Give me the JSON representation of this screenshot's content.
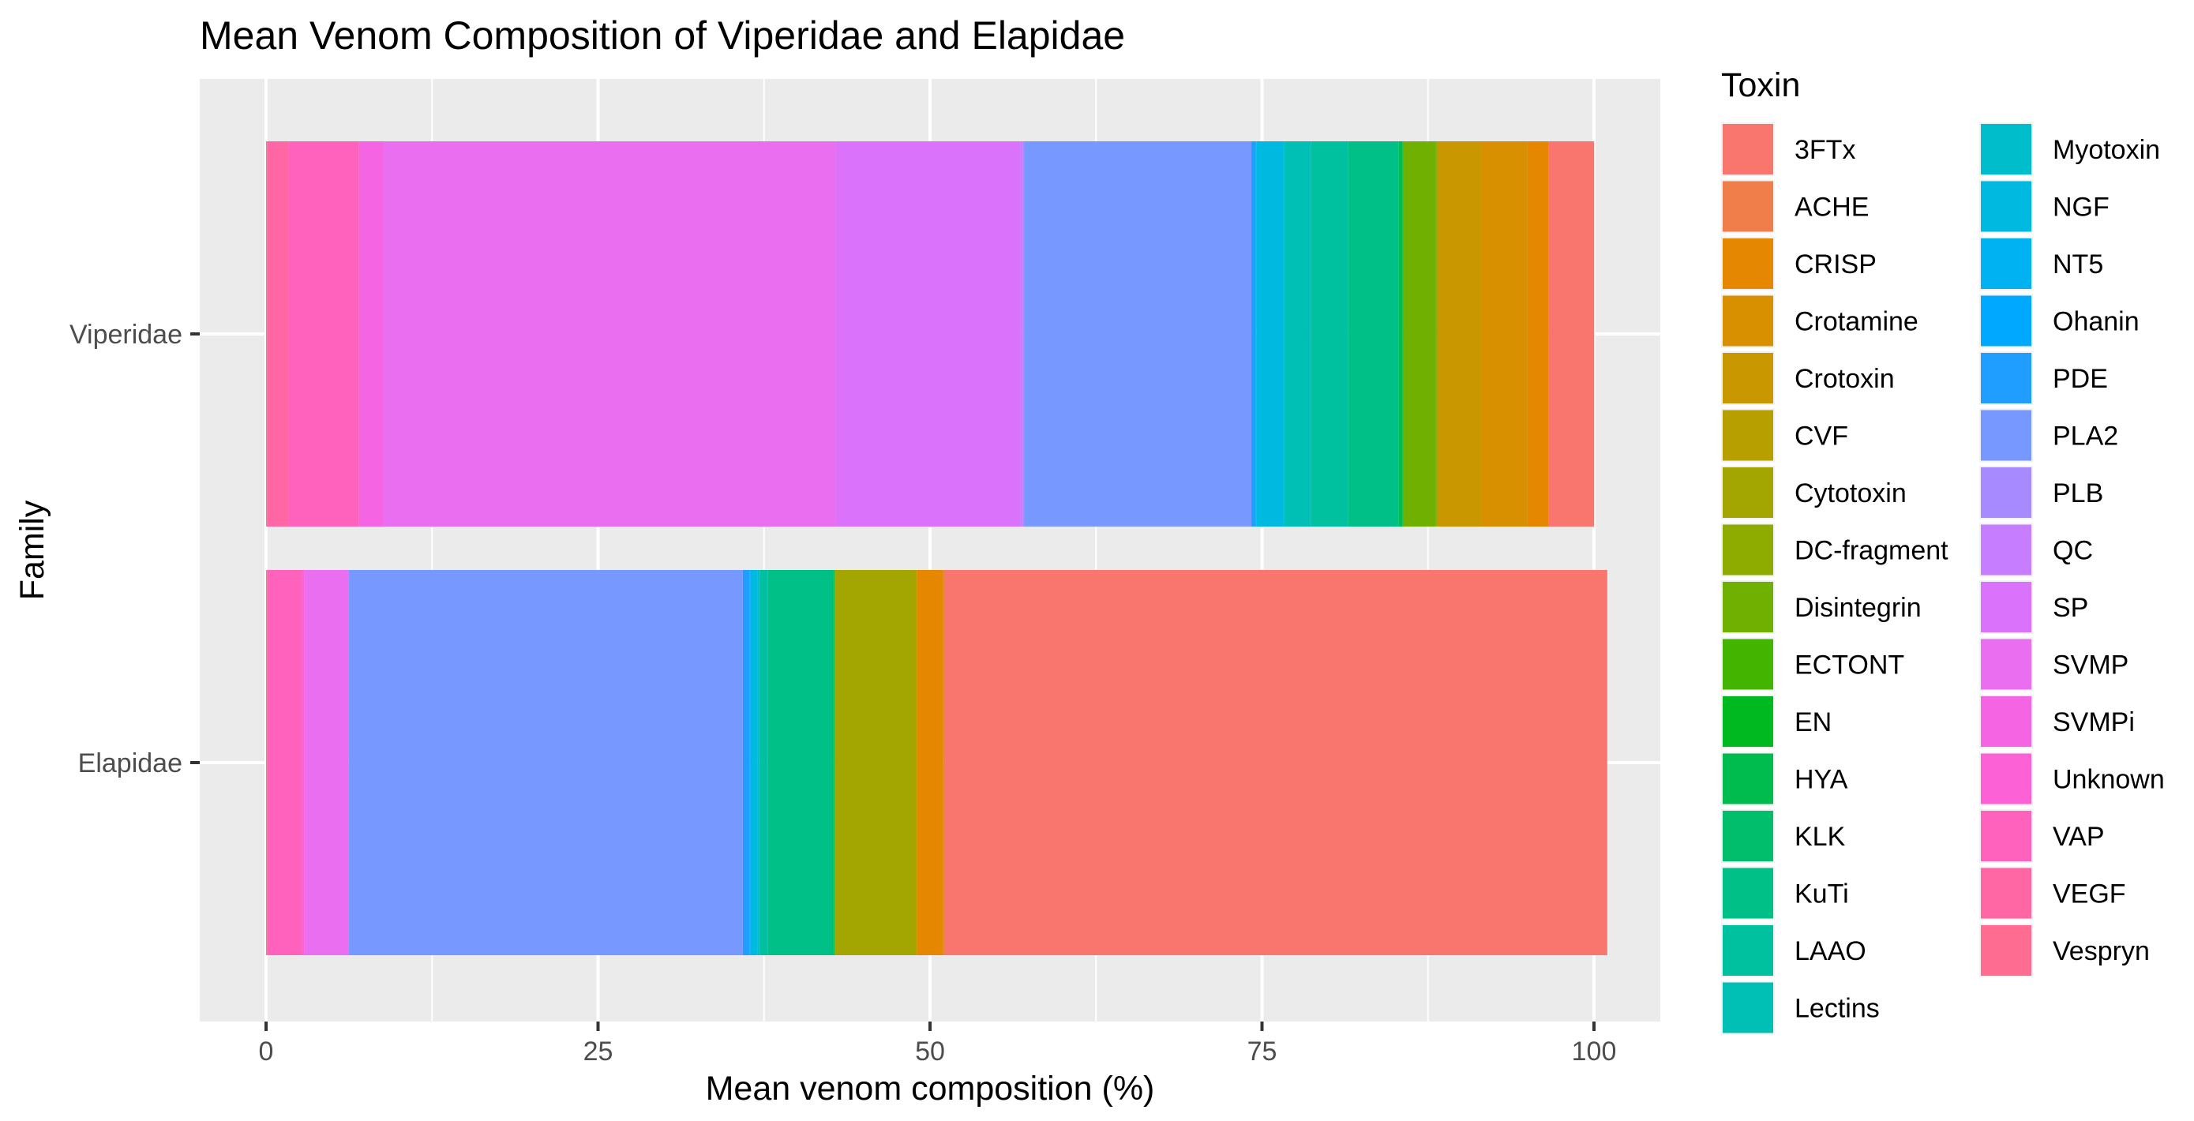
{
  "chart_data": {
    "type": "bar",
    "orientation": "horizontal",
    "stacked": true,
    "title": "Mean Venom Composition of Viperidae and Elapidae",
    "xlabel": "Mean venom composition (%)",
    "ylabel": "Family",
    "xlim": [
      0,
      100
    ],
    "xticks": [
      0,
      25,
      50,
      75,
      100
    ],
    "grid": true,
    "legend_position": "right",
    "legend_title": "Toxin",
    "categories": [
      "Viperidae",
      "Elapidae"
    ],
    "series": [
      {
        "name": "3FTx",
        "color": "#F8766D",
        "values": [
          3.4,
          49.9
        ]
      },
      {
        "name": "ACHE",
        "color": "#F07E4B",
        "values": [
          0.0,
          0.1
        ]
      },
      {
        "name": "CRISP",
        "color": "#E58700",
        "values": [
          1.6,
          2.0
        ]
      },
      {
        "name": "Crotamine",
        "color": "#D89000",
        "values": [
          3.5,
          0.0
        ]
      },
      {
        "name": "Crotoxin",
        "color": "#C99800",
        "values": [
          3.3,
          0.0
        ]
      },
      {
        "name": "CVF",
        "color": "#B79F00",
        "values": [
          0.0,
          0.1
        ]
      },
      {
        "name": "Cytotoxin",
        "color": "#A3A500",
        "values": [
          0.0,
          6.1
        ]
      },
      {
        "name": "DC-fragment",
        "color": "#8EAB00",
        "values": [
          0.1,
          0.0
        ]
      },
      {
        "name": "Disintegrin",
        "color": "#6FB000",
        "values": [
          2.5,
          0.0
        ]
      },
      {
        "name": "ECTONT",
        "color": "#43B400",
        "values": [
          0.0,
          0.0
        ]
      },
      {
        "name": "EN",
        "color": "#00B81F",
        "values": [
          0.0,
          0.0
        ]
      },
      {
        "name": "HYA",
        "color": "#00BB4E",
        "values": [
          0.3,
          0.1
        ]
      },
      {
        "name": "KLK",
        "color": "#00BE6C",
        "values": [
          0.0,
          0.1
        ]
      },
      {
        "name": "KuTi",
        "color": "#00C087",
        "values": [
          3.8,
          4.8
        ]
      },
      {
        "name": "LAAO",
        "color": "#00C19F",
        "values": [
          2.8,
          0.6
        ]
      },
      {
        "name": "Lectins",
        "color": "#00C0B6",
        "values": [
          2.0,
          0.1
        ]
      },
      {
        "name": "Myotoxin",
        "color": "#00BDCC",
        "values": [
          0.1,
          0.1
        ]
      },
      {
        "name": "NGF",
        "color": "#00B9E0",
        "values": [
          2.0,
          0.5
        ]
      },
      {
        "name": "NT5",
        "color": "#00B2F2",
        "values": [
          0.1,
          0.1
        ]
      },
      {
        "name": "Ohanin",
        "color": "#00A9FF",
        "values": [
          0.0,
          0.0
        ]
      },
      {
        "name": "PDE",
        "color": "#1F9EFF",
        "values": [
          0.3,
          0.5
        ]
      },
      {
        "name": "PLA2",
        "color": "#7799FF",
        "values": [
          17.1,
          29.7
        ]
      },
      {
        "name": "PLB",
        "color": "#A78AFF",
        "values": [
          0.1,
          0.0
        ]
      },
      {
        "name": "QC",
        "color": "#C77DFF",
        "values": [
          0.2,
          0.0
        ]
      },
      {
        "name": "SP",
        "color": "#DB72FB",
        "values": [
          13.9,
          0.0
        ]
      },
      {
        "name": "SVMP",
        "color": "#EA6EF0",
        "values": [
          34.1,
          3.3
        ]
      },
      {
        "name": "SVMPi",
        "color": "#F564E3",
        "values": [
          1.8,
          0.0
        ]
      },
      {
        "name": "Unknown",
        "color": "#FC61D5",
        "values": [
          0.0,
          0.2
        ]
      },
      {
        "name": "VAP",
        "color": "#FF62BC",
        "values": [
          5.3,
          2.6
        ]
      },
      {
        "name": "VEGF",
        "color": "#FF67A4",
        "values": [
          1.6,
          0.0
        ]
      },
      {
        "name": "Vespryn",
        "color": "#FF6C91",
        "values": [
          0.1,
          0.1
        ]
      }
    ]
  }
}
